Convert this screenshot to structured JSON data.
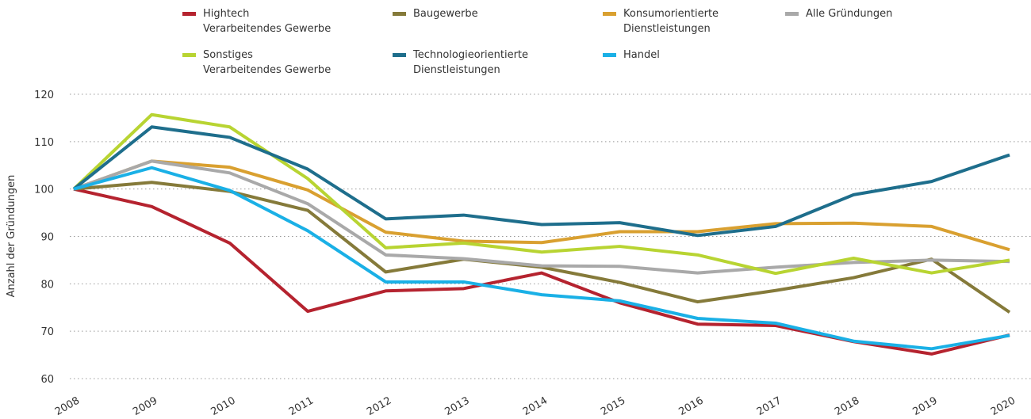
{
  "chart_data": {
    "type": "line",
    "y_label": "Anzahl der Gründungen",
    "categories": [
      "2008",
      "2009",
      "2010",
      "2011",
      "2012",
      "2013",
      "2014",
      "2015",
      "2016",
      "2017",
      "2018",
      "2019",
      "2020"
    ],
    "ylim": [
      60,
      120
    ],
    "yticks": [
      60,
      70,
      80,
      90,
      100,
      110,
      120
    ],
    "grid": true,
    "series": [
      {
        "name": "Hightech\nVerarbeitendes Gewerbe",
        "color": "#b5232f",
        "values": [
          100,
          96.3,
          88.6,
          74.2,
          78.5,
          79,
          82.3,
          76,
          71.5,
          71.2,
          67.8,
          65.2,
          69.2
        ]
      },
      {
        "name": "Baugewerbe",
        "color": "#857a3a",
        "values": [
          100,
          101.4,
          99.5,
          95.5,
          82.5,
          85.2,
          83.5,
          80.3,
          76.2,
          78.6,
          81.3,
          85.2,
          74
        ]
      },
      {
        "name": "Konsumorientierte\nDienstleistungen",
        "color": "#d9a030",
        "values": [
          100,
          105.9,
          104.6,
          99.8,
          90.9,
          89,
          88.7,
          91,
          91,
          92.7,
          92.8,
          92.1,
          87.2
        ]
      },
      {
        "name": "Alle Gründungen",
        "color": "#a9a9a9",
        "values": [
          100,
          105.9,
          103.4,
          96.9,
          86.1,
          85.3,
          83.8,
          83.7,
          82.3,
          83.5,
          84.5,
          85,
          84.7
        ]
      },
      {
        "name": "Sonstiges\nVerarbeitendes Gewerbe",
        "color": "#b8d432",
        "values": [
          100,
          115.7,
          113.1,
          102.2,
          87.6,
          88.6,
          86.7,
          87.9,
          86.1,
          82.2,
          85.4,
          82.3,
          85
        ]
      },
      {
        "name": "Technologieorientierte\nDienstleistungen",
        "color": "#1e6e8c",
        "values": [
          100,
          113.1,
          110.9,
          104.2,
          93.7,
          94.5,
          92.5,
          92.9,
          90.2,
          92.1,
          98.8,
          101.6,
          107.2
        ]
      },
      {
        "name": "Handel",
        "color": "#1ab0e6",
        "values": [
          100,
          104.5,
          99.7,
          91.2,
          80.4,
          80.4,
          77.7,
          76.4,
          72.7,
          71.7,
          67.9,
          66.3,
          69.1
        ]
      }
    ]
  }
}
